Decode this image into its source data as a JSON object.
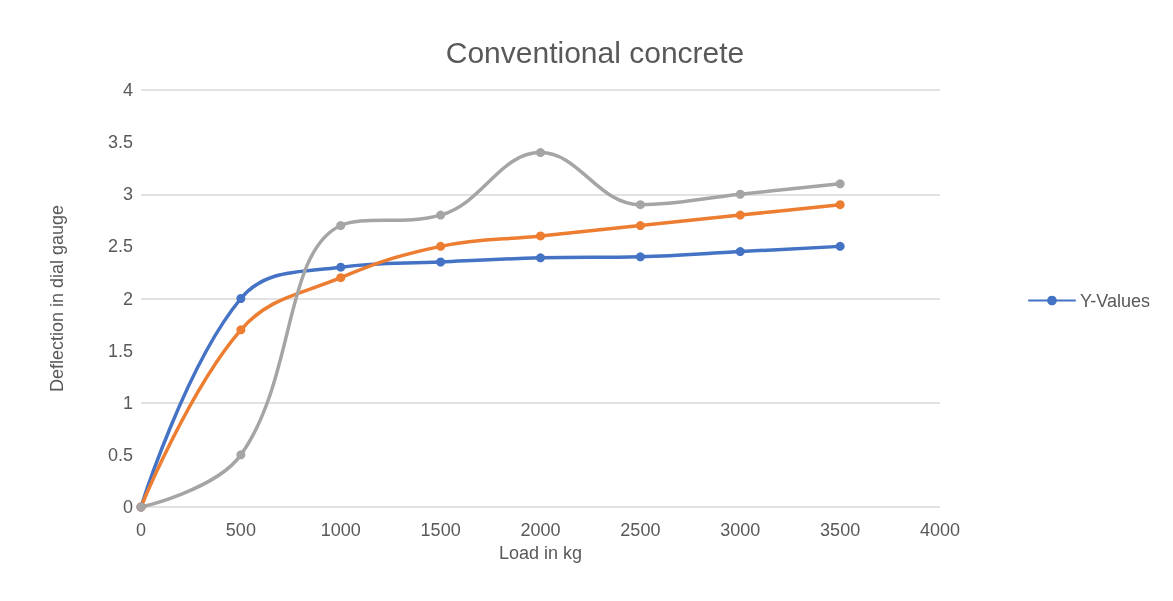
{
  "chart_data": {
    "type": "line",
    "title": "Conventional concrete",
    "xlabel": "Load in kg",
    "ylabel": "Deflection in dial gauge",
    "x": [
      0,
      500,
      1000,
      1500,
      2000,
      2500,
      3000,
      3500
    ],
    "series": [
      {
        "name": "Y-Values",
        "color": "#4472c4",
        "values": [
          0,
          2,
          2.3,
          2.35,
          2.39,
          2.4,
          2.45,
          2.5
        ]
      },
      {
        "color": "#ed7d31",
        "values": [
          0,
          1.7,
          2.2,
          2.5,
          2.6,
          2.7,
          2.8,
          2.9
        ]
      },
      {
        "color": "#a5a5a5",
        "values": [
          0,
          0.5,
          2.7,
          2.8,
          3.4,
          2.9,
          3.0,
          3.1
        ]
      }
    ],
    "xlim": [
      0,
      4000
    ],
    "xticks": [
      0,
      500,
      1000,
      1500,
      2000,
      2500,
      3000,
      3500,
      4000
    ],
    "ylim": [
      0,
      4
    ],
    "yticks": [
      0,
      0.5,
      1,
      1.5,
      2,
      2.5,
      3,
      3.5,
      4
    ],
    "grid": "y",
    "legend": "right",
    "marker": "circle",
    "line_style": "solid"
  }
}
